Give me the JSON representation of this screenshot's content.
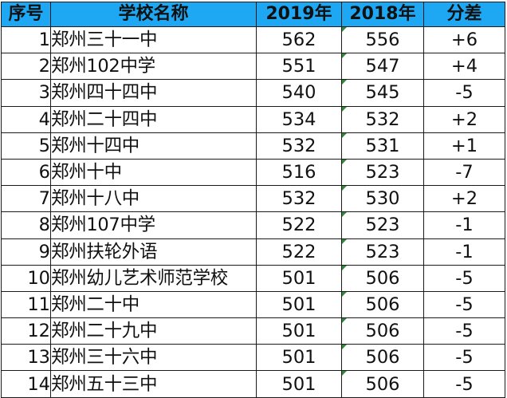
{
  "table": {
    "headers": {
      "index": "序号",
      "school": "学校名称",
      "score_2019": "2019年",
      "score_2018": "2018年",
      "difference": "分差"
    },
    "rows": [
      {
        "index": "1",
        "school": "郑州三十一中",
        "score_2019": "562",
        "score_2018": "556",
        "difference": "+6"
      },
      {
        "index": "2",
        "school": "郑州102中学",
        "score_2019": "551",
        "score_2018": "547",
        "difference": "+4"
      },
      {
        "index": "3",
        "school": "郑州四十四中",
        "score_2019": "540",
        "score_2018": "545",
        "difference": "-5"
      },
      {
        "index": "4",
        "school": "郑州二十四中",
        "score_2019": "534",
        "score_2018": "532",
        "difference": "+2"
      },
      {
        "index": "5",
        "school": "郑州十四中",
        "score_2019": "532",
        "score_2018": "531",
        "difference": "+1"
      },
      {
        "index": "6",
        "school": "郑州十中",
        "score_2019": "516",
        "score_2018": "523",
        "difference": "-7"
      },
      {
        "index": "7",
        "school": "郑州十八中",
        "score_2019": "532",
        "score_2018": "530",
        "difference": "+2"
      },
      {
        "index": "8",
        "school": "郑州107中学",
        "score_2019": "522",
        "score_2018": "523",
        "difference": "-1"
      },
      {
        "index": "9",
        "school": "郑州扶轮外语",
        "score_2019": "522",
        "score_2018": "523",
        "difference": "-1"
      },
      {
        "index": "10",
        "school": "郑州幼儿艺术师范学校",
        "score_2019": "501",
        "score_2018": "506",
        "difference": "-5"
      },
      {
        "index": "11",
        "school": "郑州二十中",
        "score_2019": "501",
        "score_2018": "506",
        "difference": "-5"
      },
      {
        "index": "12",
        "school": "郑州二十九中",
        "score_2019": "501",
        "score_2018": "506",
        "difference": "-5"
      },
      {
        "index": "13",
        "school": "郑州三十六中",
        "score_2019": "501",
        "score_2018": "506",
        "difference": "-5"
      },
      {
        "index": "14",
        "school": "郑州五十三中",
        "score_2019": "501",
        "score_2018": "506",
        "difference": "-5"
      }
    ]
  },
  "colors": {
    "header_background": "#1ea7f2",
    "grid_lines": "#1a1a1a",
    "cell_marker": "#2e8b3a"
  }
}
